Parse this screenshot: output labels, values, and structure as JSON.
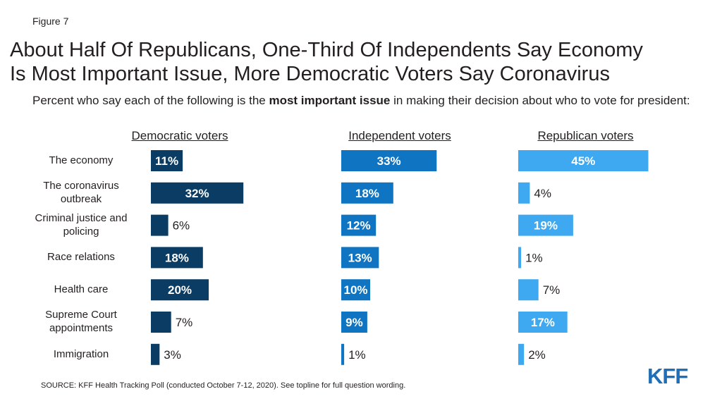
{
  "figure_label": "Figure 7",
  "title_line1": "About Half Of Republicans, One-Third Of Independents Say Economy",
  "title_line2": "Is Most Important Issue, More Democratic Voters Say Coronavirus",
  "subtitle_pre": "Percent who say each of the following is the ",
  "subtitle_bold": "most important issue",
  "subtitle_post": " in making their decision about who to vote for president:",
  "source": "SOURCE: KFF Health Tracking Poll (conducted October 7-12, 2020). See topline for full question wording.",
  "logo": "KFF",
  "chart_data": {
    "type": "bar",
    "orientation": "horizontal",
    "categories": [
      "The economy",
      "The coronavirus outbreak",
      "Criminal justice and policing",
      "Race relations",
      "Health care",
      "Supreme Court appointments",
      "Immigration"
    ],
    "series": [
      {
        "name": "Democratic voters",
        "color": "#0b3c64",
        "values": [
          11,
          32,
          6,
          18,
          20,
          7,
          3
        ],
        "labels": [
          "11%",
          "32%",
          "6%",
          "18%",
          "20%",
          "7%",
          "3%"
        ]
      },
      {
        "name": "Independent voters",
        "color": "#0f75c2",
        "values": [
          33,
          18,
          12,
          13,
          10,
          9,
          1
        ],
        "labels": [
          "33%",
          "18%",
          "12%",
          "13%",
          "10%",
          "9%",
          "1%"
        ]
      },
      {
        "name": "Republican voters",
        "color": "#3ea9f0",
        "values": [
          45,
          4,
          19,
          1,
          7,
          17,
          2
        ],
        "labels": [
          "45%",
          "4%",
          "19%",
          "1%",
          "7%",
          "17%",
          "2%"
        ]
      }
    ],
    "unit": "%",
    "xlim": [
      0,
      45
    ]
  }
}
